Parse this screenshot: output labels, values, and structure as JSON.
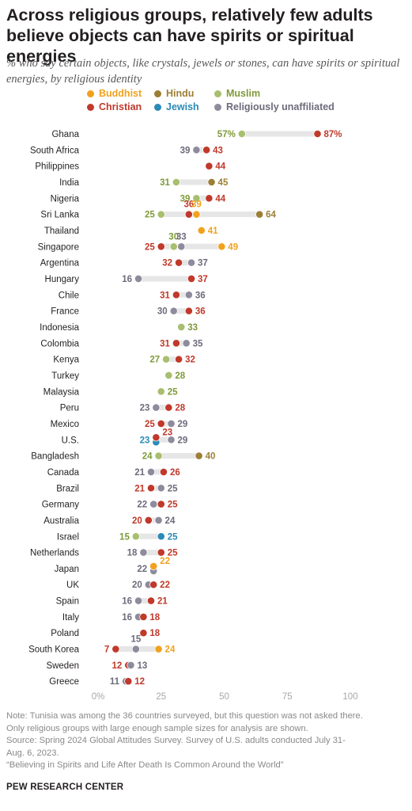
{
  "title": "Across religious groups, relatively few adults believe objects can have spirits or spiritual energies",
  "subtitle": "% who say certain objects, like crystals, jewels or stones, can have spirits or spiritual energies, by religious identity",
  "legend": [
    {
      "name": "Buddhist",
      "color": "#f0a21f"
    },
    {
      "name": "Hindu",
      "color": "#9c7f35"
    },
    {
      "name": "Muslim",
      "color": "#a7bf6e"
    },
    {
      "name": "Christian",
      "color": "#c0392b"
    },
    {
      "name": "Jewish",
      "color": "#2b8ab6"
    },
    {
      "name": "Religiously unaffiliated",
      "color": "#8e8b9c"
    }
  ],
  "colors": {
    "Buddhist": "#f0a21f",
    "Hindu": "#9c7f35",
    "Muslim": "#a7bf6e",
    "Muslim_label": "#7f9a3a",
    "Christian": "#c0392b",
    "Jewish": "#2b8ab6",
    "Religiously unaffiliated": "#8e8b9c",
    "Unaffiliated_label": "#6d6b7b",
    "range_bar": "#e6e6e6"
  },
  "chart_data": {
    "type": "dot_plot",
    "x_ticks": [
      "0%",
      "25",
      "50",
      "75",
      "100"
    ],
    "xlim": [
      0,
      100
    ],
    "grid": false,
    "countries": [
      {
        "name": "Ghana",
        "values": {
          "Muslim": 57,
          "Christian": 87
        }
      },
      {
        "name": "South Africa",
        "values": {
          "Religiously unaffiliated": 39,
          "Christian": 43
        }
      },
      {
        "name": "Philippines",
        "values": {
          "Christian": 44
        }
      },
      {
        "name": "India",
        "values": {
          "Muslim": 31,
          "Hindu": 45
        }
      },
      {
        "name": "Nigeria",
        "values": {
          "Muslim": 39,
          "Christian": 44
        }
      },
      {
        "name": "Sri Lanka",
        "values": {
          "Muslim": 25,
          "Christian": 36,
          "Buddhist": 39,
          "Hindu": 64
        }
      },
      {
        "name": "Thailand",
        "values": {
          "Buddhist": 41
        }
      },
      {
        "name": "Singapore",
        "values": {
          "Christian": 25,
          "Muslim": 30,
          "Religiously unaffiliated": 33,
          "Buddhist": 49
        }
      },
      {
        "name": "Argentina",
        "values": {
          "Christian": 32,
          "Religiously unaffiliated": 37
        }
      },
      {
        "name": "Hungary",
        "values": {
          "Religiously unaffiliated": 16,
          "Christian": 37
        }
      },
      {
        "name": "Chile",
        "values": {
          "Christian": 31,
          "Religiously unaffiliated": 36
        }
      },
      {
        "name": "France",
        "values": {
          "Religiously unaffiliated": 30,
          "Christian": 36
        }
      },
      {
        "name": "Indonesia",
        "values": {
          "Muslim": 33
        }
      },
      {
        "name": "Colombia",
        "values": {
          "Christian": 31,
          "Religiously unaffiliated": 35
        }
      },
      {
        "name": "Kenya",
        "values": {
          "Muslim": 27,
          "Christian": 32
        }
      },
      {
        "name": "Turkey",
        "values": {
          "Muslim": 28
        }
      },
      {
        "name": "Malaysia",
        "values": {
          "Muslim": 25
        }
      },
      {
        "name": "Peru",
        "values": {
          "Religiously unaffiliated": 23,
          "Christian": 28
        }
      },
      {
        "name": "Mexico",
        "values": {
          "Christian": 25,
          "Religiously unaffiliated": 29
        }
      },
      {
        "name": "U.S.",
        "values": {
          "Jewish": 23,
          "Christian": 23,
          "Religiously unaffiliated": 29
        }
      },
      {
        "name": "Bangladesh",
        "values": {
          "Muslim": 24,
          "Hindu": 40
        }
      },
      {
        "name": "Canada",
        "values": {
          "Religiously unaffiliated": 21,
          "Christian": 26
        }
      },
      {
        "name": "Brazil",
        "values": {
          "Christian": 21,
          "Religiously unaffiliated": 25
        }
      },
      {
        "name": "Germany",
        "values": {
          "Religiously unaffiliated": 22,
          "Christian": 25
        }
      },
      {
        "name": "Australia",
        "values": {
          "Christian": 20,
          "Religiously unaffiliated": 24
        }
      },
      {
        "name": "Israel",
        "values": {
          "Muslim": 15,
          "Jewish": 25
        }
      },
      {
        "name": "Netherlands",
        "values": {
          "Religiously unaffiliated": 18,
          "Christian": 25
        }
      },
      {
        "name": "Japan",
        "values": {
          "Religiously unaffiliated": 22,
          "Buddhist": 22
        }
      },
      {
        "name": "UK",
        "values": {
          "Religiously unaffiliated": 20,
          "Christian": 22
        }
      },
      {
        "name": "Spain",
        "values": {
          "Religiously unaffiliated": 16,
          "Christian": 21
        }
      },
      {
        "name": "Italy",
        "values": {
          "Religiously unaffiliated": 16,
          "Christian": 18
        }
      },
      {
        "name": "Poland",
        "values": {
          "Christian": 18
        }
      },
      {
        "name": "South Korea",
        "values": {
          "Christian": 7,
          "Religiously unaffiliated": 15,
          "Buddhist": 24
        }
      },
      {
        "name": "Sweden",
        "values": {
          "Christian": 12,
          "Religiously unaffiliated": 13
        }
      },
      {
        "name": "Greece",
        "values": {
          "Religiously unaffiliated": 11,
          "Christian": 12
        }
      }
    ],
    "value_labels": [
      {
        "country": "Ghana",
        "group": "Muslim",
        "text": "57%"
      },
      {
        "country": "Ghana",
        "group": "Christian",
        "text": "87%"
      }
    ]
  },
  "notes": [
    "Note: Tunisia was among the 36 countries surveyed, but this question was not asked there.",
    "Only religious groups with large enough sample sizes for analysis are shown.",
    "Source: Spring 2024 Global Attitudes Survey. Survey of U.S. adults conducted July 31-",
    "Aug. 6, 2023.",
    "“Believing in Spirits and Life After Death Is Common Around the World”"
  ],
  "source_brand": "PEW RESEARCH CENTER"
}
